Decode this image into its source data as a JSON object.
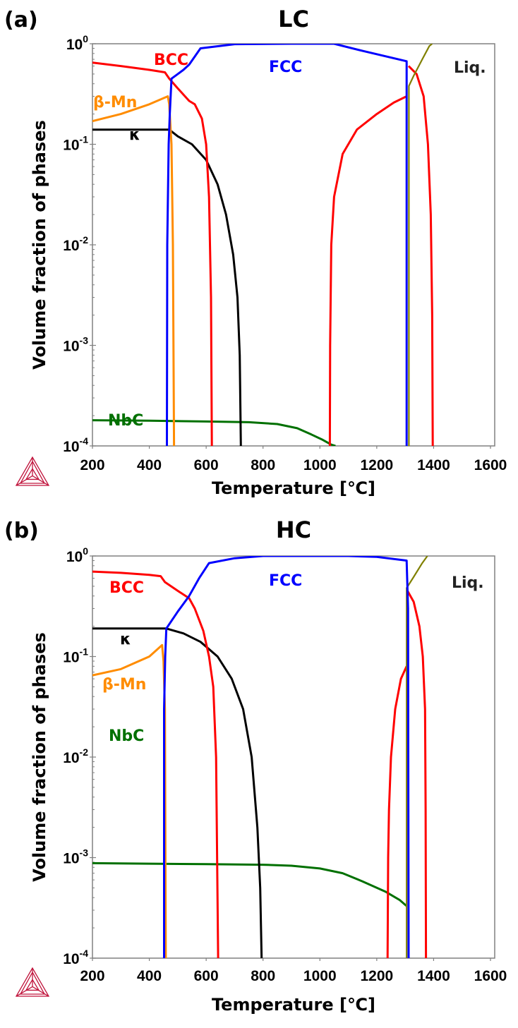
{
  "colors": {
    "BCC": "#ff0000",
    "FCC": "#0000ff",
    "beta_Mn": "#ff8c00",
    "kappa": "#000000",
    "NbC": "#007000",
    "Liq": "#808000",
    "logo": "#c0143c"
  },
  "logo": {
    "icon": "thermo-calc-triangle-logo"
  },
  "chart_data": [
    {
      "type": "line",
      "panel_label": "(a)",
      "title": "LC",
      "xlabel": "Temperature [℃]",
      "ylabel": "Volume fraction of phases",
      "xlim": [
        200,
        1600
      ],
      "ylim": [
        0.0001,
        1
      ],
      "yscale": "log",
      "x_ticks": [
        "200",
        "400",
        "600",
        "800",
        "1000",
        "1200",
        "1400",
        "1600"
      ],
      "y_ticks": [
        {
          "base": "10",
          "exp": "0"
        },
        {
          "base": "10",
          "exp": "-1"
        },
        {
          "base": "10",
          "exp": "-2"
        },
        {
          "base": "10",
          "exp": "-3"
        },
        {
          "base": "10",
          "exp": "-4"
        }
      ],
      "series": [
        {
          "name": "BCC",
          "label": "BCC",
          "color_key": "BCC",
          "points": [
            [
              200,
              0.65
            ],
            [
              300,
              0.6
            ],
            [
              400,
              0.55
            ],
            [
              455,
              0.52
            ],
            [
              470,
              0.45
            ],
            [
              500,
              0.36
            ],
            [
              540,
              0.27
            ],
            [
              560,
              0.25
            ],
            [
              585,
              0.18
            ],
            [
              600,
              0.1
            ],
            [
              610,
              0.03
            ],
            [
              617,
              0.003
            ],
            [
              620,
              0.0001
            ]
          ]
        },
        {
          "name": "BCC-2",
          "label": "",
          "color_key": "BCC",
          "points": [
            [
              1035,
              0.0001
            ],
            [
              1036,
              0.001
            ],
            [
              1040,
              0.01
            ],
            [
              1050,
              0.03
            ],
            [
              1080,
              0.08
            ],
            [
              1130,
              0.14
            ],
            [
              1200,
              0.2
            ],
            [
              1260,
              0.26
            ],
            [
              1305,
              0.3
            ]
          ]
        },
        {
          "name": "BCC-3",
          "label": "",
          "color_key": "BCC",
          "points": [
            [
              1312,
              0.6
            ],
            [
              1340,
              0.5
            ],
            [
              1365,
              0.3
            ],
            [
              1380,
              0.1
            ],
            [
              1390,
              0.02
            ],
            [
              1395,
              0.002
            ],
            [
              1397,
              0.0001
            ]
          ]
        },
        {
          "name": "FCC",
          "label": "FCC",
          "color_key": "FCC",
          "points": [
            [
              462,
              0.0001
            ],
            [
              463,
              0.01
            ],
            [
              468,
              0.1
            ],
            [
              472,
              0.2
            ],
            [
              478,
              0.45
            ],
            [
              500,
              0.5
            ],
            [
              520,
              0.55
            ],
            [
              540,
              0.62
            ],
            [
              580,
              0.9
            ],
            [
              700,
              0.99
            ],
            [
              900,
              1.0
            ],
            [
              1050,
              1.0
            ],
            [
              1150,
              0.85
            ],
            [
              1305,
              0.67
            ],
            [
              1305,
              0.0001
            ]
          ]
        },
        {
          "name": "beta-Mn",
          "label": "β-Mn",
          "color_key": "beta_Mn",
          "points": [
            [
              200,
              0.17
            ],
            [
              300,
              0.2
            ],
            [
              400,
              0.25
            ],
            [
              465,
              0.3
            ],
            [
              470,
              0.25
            ],
            [
              478,
              0.1
            ],
            [
              483,
              0.01
            ],
            [
              487,
              0.0001
            ]
          ]
        },
        {
          "name": "kappa",
          "label": "κ",
          "color_key": "kappa",
          "points": [
            [
              200,
              0.14
            ],
            [
              400,
              0.14
            ],
            [
              470,
              0.14
            ],
            [
              500,
              0.12
            ],
            [
              550,
              0.1
            ],
            [
              600,
              0.07
            ],
            [
              640,
              0.04
            ],
            [
              670,
              0.02
            ],
            [
              695,
              0.008
            ],
            [
              710,
              0.003
            ],
            [
              718,
              0.0008
            ],
            [
              722,
              0.0001
            ]
          ]
        },
        {
          "name": "NbC",
          "label": "NbC",
          "color_key": "NbC",
          "points": [
            [
              200,
              0.00018
            ],
            [
              400,
              0.000178
            ],
            [
              600,
              0.000175
            ],
            [
              750,
              0.000172
            ],
            [
              850,
              0.000165
            ],
            [
              920,
              0.00015
            ],
            [
              970,
              0.00013
            ],
            [
              1010,
              0.000115
            ],
            [
              1040,
              0.000103
            ],
            [
              1055,
              0.0001
            ]
          ]
        },
        {
          "name": "Liq",
          "label": "Liq.",
          "color_key": "Liq",
          "points": [
            [
              1313,
              0.0001
            ],
            [
              1313,
              0.38
            ],
            [
              1330,
              0.48
            ],
            [
              1360,
              0.7
            ],
            [
              1385,
              0.95
            ],
            [
              1395,
              1.0
            ]
          ]
        }
      ]
    },
    {
      "type": "line",
      "panel_label": "(b)",
      "title": "HC",
      "xlabel": "Temperature [℃]",
      "ylabel": "Volume fraction of phases",
      "xlim": [
        200,
        1600
      ],
      "ylim": [
        0.0001,
        1
      ],
      "yscale": "log",
      "x_ticks": [
        "200",
        "400",
        "600",
        "800",
        "1000",
        "1200",
        "1400",
        "1600"
      ],
      "y_ticks": [
        {
          "base": "10",
          "exp": "0"
        },
        {
          "base": "10",
          "exp": "-1"
        },
        {
          "base": "10",
          "exp": "-2"
        },
        {
          "base": "10",
          "exp": "-3"
        },
        {
          "base": "10",
          "exp": "-4"
        }
      ],
      "series": [
        {
          "name": "BCC",
          "label": "BCC",
          "color_key": "BCC",
          "points": [
            [
              200,
              0.7
            ],
            [
              300,
              0.68
            ],
            [
              400,
              0.65
            ],
            [
              440,
              0.63
            ],
            [
              455,
              0.55
            ],
            [
              500,
              0.45
            ],
            [
              540,
              0.38
            ],
            [
              560,
              0.3
            ],
            [
              590,
              0.18
            ],
            [
              610,
              0.1
            ],
            [
              625,
              0.05
            ],
            [
              635,
              0.01
            ],
            [
              642,
              0.0001
            ]
          ]
        },
        {
          "name": "BCC-2",
          "label": "",
          "color_key": "BCC",
          "points": [
            [
              1238,
              0.0001
            ],
            [
              1240,
              0.001
            ],
            [
              1243,
              0.003
            ],
            [
              1250,
              0.01
            ],
            [
              1265,
              0.03
            ],
            [
              1285,
              0.06
            ],
            [
              1305,
              0.08
            ]
          ]
        },
        {
          "name": "BCC-3",
          "label": "",
          "color_key": "BCC",
          "points": [
            [
              1308,
              0.45
            ],
            [
              1330,
              0.35
            ],
            [
              1350,
              0.2
            ],
            [
              1362,
              0.1
            ],
            [
              1370,
              0.03
            ],
            [
              1372,
              0.003
            ],
            [
              1373,
              0.0001
            ]
          ]
        },
        {
          "name": "FCC",
          "label": "FCC",
          "color_key": "FCC",
          "points": [
            [
              452,
              0.0001
            ],
            [
              452,
              0.03
            ],
            [
              456,
              0.1
            ],
            [
              460,
              0.19
            ],
            [
              500,
              0.28
            ],
            [
              540,
              0.4
            ],
            [
              575,
              0.6
            ],
            [
              610,
              0.85
            ],
            [
              700,
              0.95
            ],
            [
              800,
              1.0
            ],
            [
              1100,
              1.0
            ],
            [
              1200,
              0.98
            ],
            [
              1305,
              0.9
            ],
            [
              1310,
              0.3
            ],
            [
              1312,
              0.0001
            ]
          ]
        },
        {
          "name": "beta-Mn",
          "label": "β-Mn",
          "color_key": "beta_Mn",
          "points": [
            [
              200,
              0.065
            ],
            [
              300,
              0.075
            ],
            [
              400,
              0.1
            ],
            [
              445,
              0.13
            ],
            [
              450,
              0.09
            ],
            [
              455,
              0.03
            ],
            [
              458,
              0.0001
            ]
          ]
        },
        {
          "name": "kappa",
          "label": "κ",
          "color_key": "kappa",
          "points": [
            [
              200,
              0.19
            ],
            [
              400,
              0.19
            ],
            [
              460,
              0.19
            ],
            [
              520,
              0.17
            ],
            [
              580,
              0.14
            ],
            [
              640,
              0.1
            ],
            [
              690,
              0.06
            ],
            [
              730,
              0.03
            ],
            [
              760,
              0.01
            ],
            [
              780,
              0.002
            ],
            [
              790,
              0.0005
            ],
            [
              795,
              0.0001
            ]
          ]
        },
        {
          "name": "NbC",
          "label": "NbC",
          "color_key": "NbC",
          "points": [
            [
              200,
              0.00088
            ],
            [
              400,
              0.00087
            ],
            [
              600,
              0.00086
            ],
            [
              800,
              0.00085
            ],
            [
              900,
              0.00083
            ],
            [
              1000,
              0.00078
            ],
            [
              1080,
              0.0007
            ],
            [
              1150,
              0.00058
            ],
            [
              1230,
              0.00046
            ],
            [
              1280,
              0.00038
            ],
            [
              1305,
              0.00033
            ]
          ]
        },
        {
          "name": "Liq",
          "label": "Liq.",
          "color_key": "Liq",
          "points": [
            [
              1305,
              0.0001
            ],
            [
              1305,
              0.48
            ],
            [
              1330,
              0.62
            ],
            [
              1360,
              0.85
            ],
            [
              1378,
              1.0
            ]
          ]
        }
      ]
    }
  ]
}
